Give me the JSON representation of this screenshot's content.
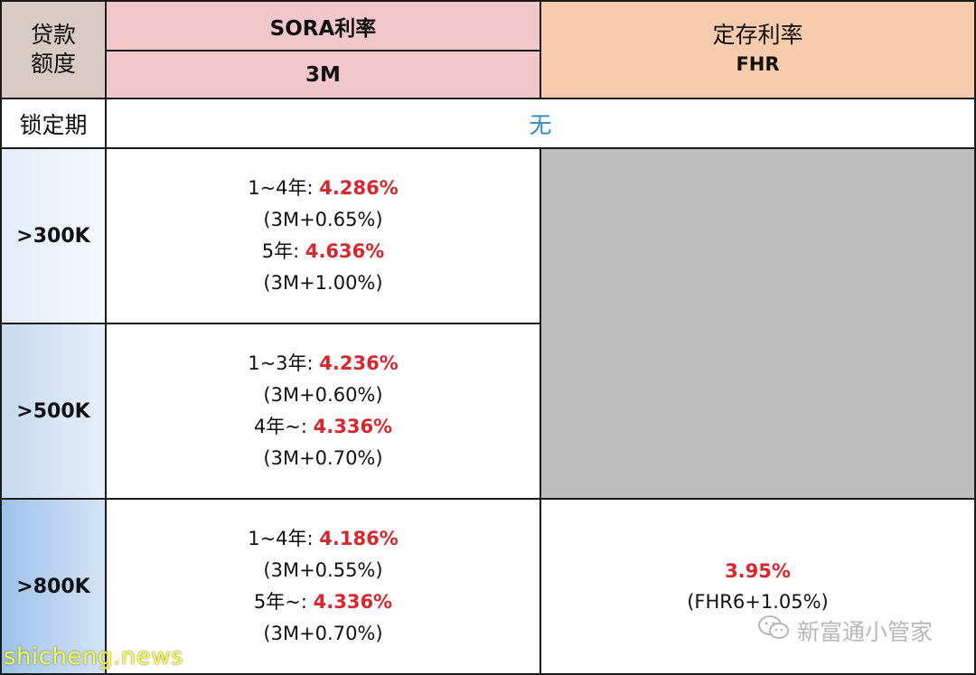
{
  "header": {
    "loan_label": "贷款\n额度",
    "sora_label": "SORA利率",
    "sora_sub": "3M",
    "fixed_label": "定存利率",
    "fixed_sub": "FHR"
  },
  "lock": {
    "label": "锁定期",
    "value": "无"
  },
  "tiers": [
    {
      "amount": ">300K",
      "sora": [
        {
          "term": "1~4年: ",
          "rate": "4.286%"
        },
        {
          "text": "(3M+0.65%)"
        },
        {
          "term": "5年: ",
          "rate": "4.636%"
        },
        {
          "text": "(3M+1.00%)"
        }
      ]
    },
    {
      "amount": ">500K",
      "sora": [
        {
          "term": "1~3年: ",
          "rate": "4.236%"
        },
        {
          "text": "(3M+0.60%)"
        },
        {
          "term": "4年~: ",
          "rate": "4.336%"
        },
        {
          "text": "(3M+0.70%)"
        }
      ]
    },
    {
      "amount": ">800K",
      "sora": [
        {
          "term": "1~4年: ",
          "rate": "4.186%"
        },
        {
          "text": "(3M+0.55%)"
        },
        {
          "term": "5年~: ",
          "rate": "4.336%"
        },
        {
          "text": "(3M+0.70%)"
        }
      ],
      "fhr": {
        "rate": "3.95%",
        "formula": "(FHR6+1.05%)"
      }
    }
  ],
  "watermarks": {
    "left": "shicheng.news",
    "right": "新富通小管家",
    "right_icon": "wechat-icon"
  },
  "colors": {
    "rate_highlight": "#d8262e",
    "lock_value": "#2e8ac5",
    "sora_header_bg": "#f2c7cc",
    "fixed_header_bg": "#f8cbad",
    "empty_cell_bg": "#bfbebf"
  }
}
